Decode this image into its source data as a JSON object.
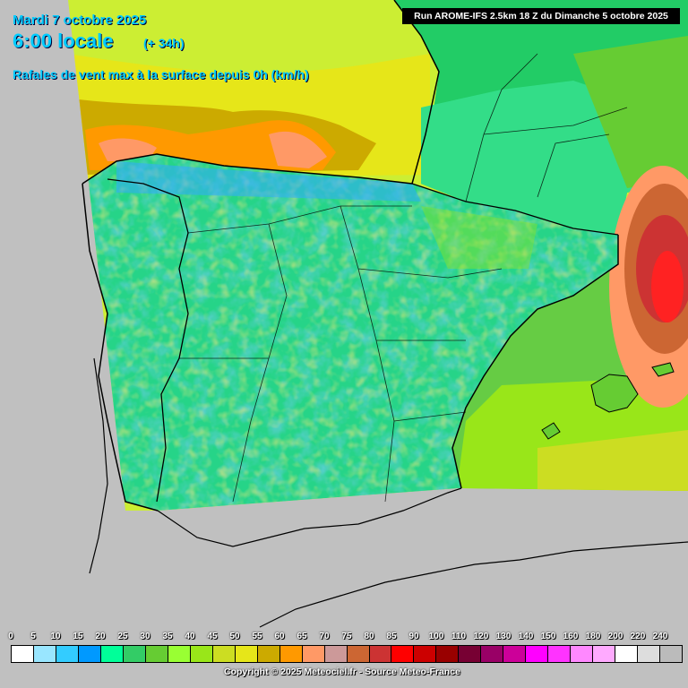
{
  "header": {
    "date": "Mardi 7 octobre 2025",
    "time": "6:00 locale",
    "lead": "(+ 34h)",
    "parameter": "Rafales de vent max à la surface depuis 0h (km/h)",
    "run": "Run AROME-IFS 2.5km 18 Z du Dimanche 5 octobre 2025"
  },
  "legend": {
    "ticks": [
      "0",
      "5",
      "10",
      "15",
      "20",
      "25",
      "30",
      "35",
      "40",
      "45",
      "50",
      "55",
      "60",
      "65",
      "70",
      "75",
      "80",
      "85",
      "90",
      "100",
      "110",
      "120",
      "130",
      "140",
      "150",
      "160",
      "180",
      "200",
      "220",
      "240"
    ],
    "colors": [
      "#ffffff",
      "#99e6ff",
      "#33ccff",
      "#0099ff",
      "#00ff99",
      "#33cc66",
      "#66cc33",
      "#99ff33",
      "#99e619",
      "#ccdd22",
      "#e6e619",
      "#ccaa00",
      "#ff9900",
      "#ff9966",
      "#cc9999",
      "#cc6633",
      "#cc3333",
      "#ff0000",
      "#cc0000",
      "#990000",
      "#770033",
      "#990066",
      "#cc0099",
      "#ff00ff",
      "#ff33ff",
      "#ff88ff",
      "#ffaaff",
      "#ffffff",
      "#dddddd",
      "#bbbbbb"
    ]
  },
  "copyright": "Copyright © 2025 Meteociel.fr - Source Meteo-France",
  "colors": {
    "outside": "#c0c0c0",
    "sea_north": "#ccee33",
    "land": "#33dd88",
    "france": "#22cc66",
    "med": "#66cc44",
    "high_wind": "#ff6633",
    "storm_core": "#ff2222",
    "title": "#00ccff"
  }
}
